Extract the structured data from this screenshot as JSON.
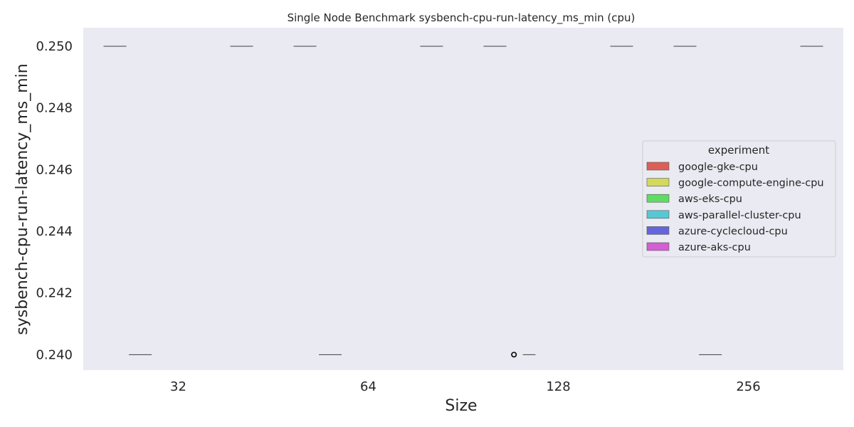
{
  "chart_data": {
    "type": "box",
    "title": "Single Node Benchmark sysbench-cpu-run-latency_ms_min (cpu)",
    "xlabel": "Size",
    "ylabel": "sysbench-cpu-run-latency_ms_min",
    "categories": [
      "32",
      "64",
      "128",
      "256"
    ],
    "ylim": [
      0.2395,
      0.2506
    ],
    "yticks": [
      0.24,
      0.242,
      0.244,
      0.246,
      0.248,
      0.25
    ],
    "ytick_labels": [
      "0.240",
      "0.242",
      "0.244",
      "0.246",
      "0.248",
      "0.250"
    ],
    "grid": true,
    "legend": {
      "title": "experiment",
      "placement": "center-right"
    },
    "series": [
      {
        "name": "google-gke-cpu",
        "color": "#db5f57",
        "values": [
          0.25,
          0.25,
          0.25,
          0.25
        ]
      },
      {
        "name": "google-compute-engine-cpu",
        "color": "#d3d95a",
        "values": [
          0.24,
          0.24,
          0.24,
          0.24
        ]
      },
      {
        "name": "aws-eks-cpu",
        "color": "#5fdc63",
        "values": [
          null,
          null,
          null,
          null
        ]
      },
      {
        "name": "aws-parallel-cluster-cpu",
        "color": "#57c8d3",
        "values": [
          null,
          null,
          null,
          null
        ]
      },
      {
        "name": "azure-cyclecloud-cpu",
        "color": "#6664dc",
        "values": [
          null,
          null,
          null,
          null
        ]
      },
      {
        "name": "azure-aks-cpu",
        "color": "#d45ed3",
        "values": [
          0.25,
          0.25,
          0.25,
          0.25
        ]
      }
    ],
    "outliers": [
      {
        "category": "128",
        "series": "google-compute-engine-cpu",
        "value": 0.24
      }
    ]
  }
}
